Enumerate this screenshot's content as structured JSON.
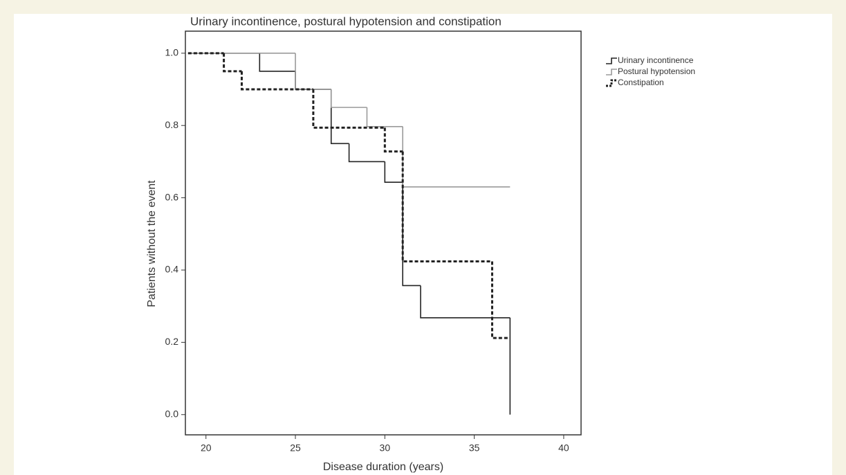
{
  "chart_data": {
    "type": "step",
    "title": "Urinary incontinence, postural hypotension and constipation",
    "xlabel": "Disease duration (years)",
    "ylabel": "Patients without the event",
    "xlim": [
      18.85,
      40.97
    ],
    "ylim": [
      -0.056,
      1.061
    ],
    "xticks": [
      20,
      25,
      30,
      35,
      40
    ],
    "yticks": [
      {
        "value": 0,
        "label": "0.0"
      },
      0.2,
      0.4,
      0.6,
      0.8,
      {
        "value": 1,
        "label": "1.0"
      }
    ],
    "series": [
      {
        "name": "Urinary incontinence",
        "color": "#222222",
        "line_style": "solid",
        "x": [
          19,
          23,
          25,
          27,
          28,
          30,
          31,
          32,
          37,
          37
        ],
        "values": [
          1.0,
          0.95,
          0.9,
          0.75,
          0.7,
          0.643,
          0.357,
          0.268,
          0.268,
          0.0
        ]
      },
      {
        "name": "Postural hypotension",
        "color": "#9a9a9a",
        "line_style": "solid",
        "x": [
          19,
          25,
          27,
          29,
          31,
          37
        ],
        "values": [
          1.0,
          0.9,
          0.85,
          0.797,
          0.63,
          0.63
        ]
      },
      {
        "name": "Constipation",
        "color": "#222222",
        "line_style": "dashed",
        "x": [
          19,
          21,
          22,
          26,
          30,
          31,
          36,
          37
        ],
        "values": [
          1.0,
          0.95,
          0.9,
          0.794,
          0.728,
          0.424,
          0.212,
          0.212
        ]
      }
    ]
  }
}
